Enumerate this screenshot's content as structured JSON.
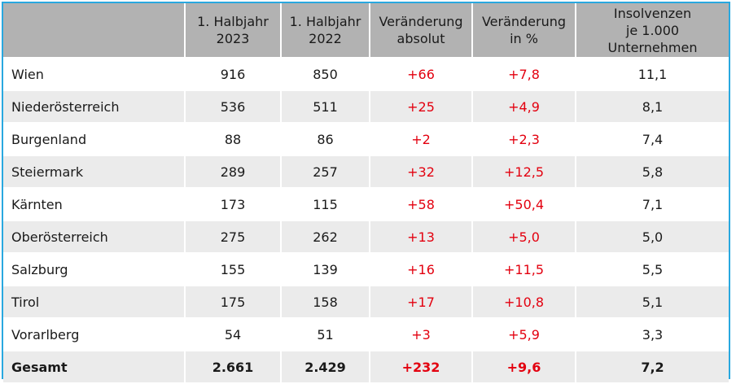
{
  "headers": [
    "",
    "1. Halbjahr\n2023",
    "1. Halbjahr\n2022",
    "Veränderung\nabsolut",
    "Veränderung\nin %",
    "Insolvenzen\nje 1.000 Unternehmen"
  ],
  "rows": [
    {
      "region": "Wien",
      "h2023": "916",
      "h2022": "850",
      "abs": "+66",
      "pct": "+7,8",
      "per1000": "11,1"
    },
    {
      "region": "Niederösterreich",
      "h2023": "536",
      "h2022": "511",
      "abs": "+25",
      "pct": "+4,9",
      "per1000": "8,1"
    },
    {
      "region": "Burgenland",
      "h2023": "88",
      "h2022": "86",
      "abs": "+2",
      "pct": "+2,3",
      "per1000": "7,4"
    },
    {
      "region": "Steiermark",
      "h2023": "289",
      "h2022": "257",
      "abs": "+32",
      "pct": "+12,5",
      "per1000": "5,8"
    },
    {
      "region": "Kärnten",
      "h2023": "173",
      "h2022": "115",
      "abs": "+58",
      "pct": "+50,4",
      "per1000": "7,1"
    },
    {
      "region": "Oberösterreich",
      "h2023": "275",
      "h2022": "262",
      "abs": "+13",
      "pct": "+5,0",
      "per1000": "5,0"
    },
    {
      "region": "Salzburg",
      "h2023": "155",
      "h2022": "139",
      "abs": "+16",
      "pct": "+11,5",
      "per1000": "5,5"
    },
    {
      "region": "Tirol",
      "h2023": "175",
      "h2022": "158",
      "abs": "+17",
      "pct": "+10,8",
      "per1000": "5,1"
    },
    {
      "region": "Vorarlberg",
      "h2023": "54",
      "h2022": "51",
      "abs": "+3",
      "pct": "+5,9",
      "per1000": "3,3"
    }
  ],
  "total": {
    "region": "Gesamt",
    "h2023": "2.661",
    "h2022": "2.429",
    "abs": "+232",
    "pct": "+9,6",
    "per1000": "7,2"
  },
  "colors": {
    "border": "#29a8df",
    "header_bg": "#b2b2b2",
    "stripe_bg": "#ebebeb",
    "change_text": "#e3000f"
  }
}
